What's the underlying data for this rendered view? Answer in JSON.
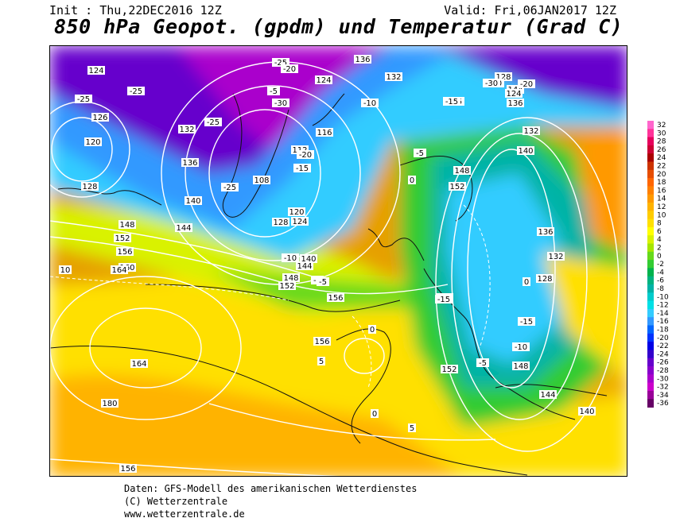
{
  "header": {
    "init": "Init : Thu,22DEC2016 12Z",
    "valid": "Valid: Fri,06JAN2017 12Z",
    "title": "850 hPa Geopot. (gpdm) und Temperatur (Grad C)"
  },
  "legend": {
    "values": [
      "32",
      "30",
      "28",
      "26",
      "24",
      "22",
      "20",
      "18",
      "16",
      "14",
      "12",
      "10",
      "8",
      "6",
      "4",
      "2",
      "0",
      "-2",
      "-4",
      "-6",
      "-8",
      "-10",
      "-12",
      "-14",
      "-16",
      "-18",
      "-20",
      "-22",
      "-24",
      "-26",
      "-28",
      "-30",
      "-32",
      "-34",
      "-36"
    ],
    "colors": [
      "#ff66cc",
      "#ff3399",
      "#e6005c",
      "#cc0033",
      "#aa0000",
      "#cc3300",
      "#e64d00",
      "#ff6600",
      "#ff8000",
      "#ff9900",
      "#ffb300",
      "#ffcc00",
      "#ffe000",
      "#ffff00",
      "#d9f200",
      "#a6e600",
      "#66d91a",
      "#33cc33",
      "#00b34d",
      "#00b380",
      "#00b3a6",
      "#00cccc",
      "#00e0e6",
      "#33ccff",
      "#3399ff",
      "#0066ff",
      "#0033ff",
      "#0000e6",
      "#3300cc",
      "#6600cc",
      "#8800cc",
      "#aa00cc",
      "#cc00cc",
      "#990099",
      "#660066"
    ]
  },
  "footer": {
    "line1": "Daten: GFS-Modell des amerikanischen Wetterdienstes",
    "line2": "(C) Wetterzentrale",
    "line3": "www.wetterzentrale.de"
  },
  "geopotential_labels": [
    "136",
    "132",
    "128",
    "124",
    "120",
    "116",
    "112",
    "108",
    "128",
    "124",
    "126",
    "132",
    "136",
    "140",
    "144",
    "148",
    "152",
    "156",
    "160",
    "164",
    "180",
    "156",
    "164",
    "156",
    "152",
    "148",
    "144",
    "140",
    "136",
    "132",
    "128",
    "124",
    "120",
    "140",
    "144",
    "148",
    "152",
    "156",
    "152",
    "148",
    "144",
    "140",
    "136",
    "132",
    "128",
    "124"
  ],
  "temperature_labels": [
    "-25",
    "-25",
    "-25",
    "-30",
    "-25",
    "-20",
    "-20",
    "-15",
    "-10",
    "-5",
    "-25",
    "-20",
    "-15",
    "-10",
    "-5",
    "0",
    "5",
    "0",
    "0",
    "5",
    "10",
    "-20",
    "-15",
    "-10",
    "-5",
    "0",
    "-15",
    "-15",
    "-10",
    "-5",
    "-5",
    "-30",
    "-20"
  ]
}
